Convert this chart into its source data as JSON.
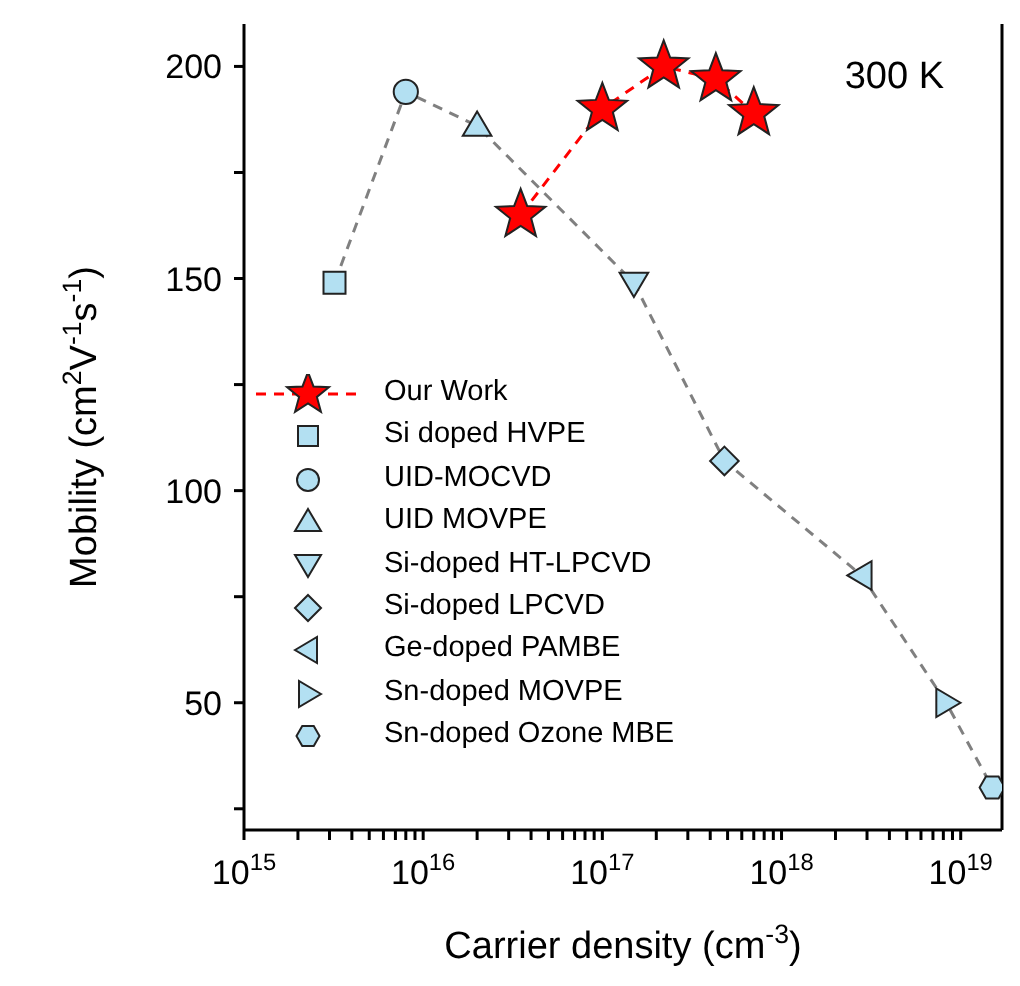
{
  "chart_data": {
    "type": "scatter",
    "xlabel": "Carrier density (cm$^{-3}$)",
    "ylabel": "Mobility (cm$^{2}$V$^{-1}$s$^{-1}$)",
    "annotations": [
      "300 K"
    ],
    "log": "x",
    "grid": false,
    "legend": "left",
    "xlim": [
      1000000000000000.0,
      1.7e+19
    ],
    "ylim": [
      20,
      210
    ],
    "xticks": [
      {
        "value": 1000000000000000.0,
        "label": "10$^{15}$"
      },
      {
        "value": 2000000000000000.0,
        "label": null
      },
      {
        "value": 3000000000000000.0,
        "label": null
      },
      {
        "value": 4000000000000000.0,
        "label": null
      },
      {
        "value": 5000000000000000.0,
        "label": null
      },
      {
        "value": 6000000000000000.0,
        "label": null
      },
      {
        "value": 7000000000000000.0,
        "label": null
      },
      {
        "value": 8000000000000000.0,
        "label": null
      },
      {
        "value": 9000000000000000.0,
        "label": null
      },
      {
        "value": 1e+16,
        "label": "10$^{16}$"
      },
      {
        "value": 2e+16,
        "label": null
      },
      {
        "value": 3e+16,
        "label": null
      },
      {
        "value": 4e+16,
        "label": null
      },
      {
        "value": 5e+16,
        "label": null
      },
      {
        "value": 6e+16,
        "label": null
      },
      {
        "value": 7e+16,
        "label": null
      },
      {
        "value": 8e+16,
        "label": null
      },
      {
        "value": 9e+16,
        "label": null
      },
      {
        "value": 1e+17,
        "label": "10$^{17}$"
      },
      {
        "value": 2e+17,
        "label": null
      },
      {
        "value": 3e+17,
        "label": null
      },
      {
        "value": 4e+17,
        "label": null
      },
      {
        "value": 5e+17,
        "label": null
      },
      {
        "value": 6e+17,
        "label": null
      },
      {
        "value": 7e+17,
        "label": null
      },
      {
        "value": 8e+17,
        "label": null
      },
      {
        "value": 9e+17,
        "label": null
      },
      {
        "value": 1e+18,
        "label": "10$^{18}$"
      },
      {
        "value": 2e+18,
        "label": null
      },
      {
        "value": 3e+18,
        "label": null
      },
      {
        "value": 4e+18,
        "label": null
      },
      {
        "value": 5e+18,
        "label": null
      },
      {
        "value": 6e+18,
        "label": null
      },
      {
        "value": 7e+18,
        "label": null
      },
      {
        "value": 8e+18,
        "label": null
      },
      {
        "value": 9e+18,
        "label": null
      },
      {
        "value": 1e+19,
        "label": "10$^{19}$"
      }
    ],
    "yticks": [
      {
        "value": 25,
        "label": null
      },
      50,
      {
        "value": 75,
        "label": null
      },
      100,
      {
        "value": 125,
        "label": null
      },
      150,
      {
        "value": 175,
        "label": null
      },
      200
    ],
    "series": [
      {
        "type": "line",
        "color": "#808080",
        "line_style": "dashed",
        "marker": "none",
        "x": [
          3200000000000000.0,
          8000000000000000.0,
          2e+16,
          1.5e+17,
          4.8e+17,
          2.8e+18,
          8.3e+18,
          1.5e+19
        ],
        "values": [
          149,
          194,
          186,
          149,
          107,
          80,
          50,
          30
        ]
      },
      {
        "name": "Our Work",
        "type": "line",
        "color": "#ff0000",
        "line_style": "dashed",
        "marker": "star",
        "x": [
          3.5e+16,
          1e+17,
          2.2e+17,
          4.3e+17,
          7e+17
        ],
        "values": [
          165,
          190,
          200,
          197,
          189
        ]
      },
      {
        "name": "Si doped HVPE",
        "color": "#b3e0f2",
        "marker": "square",
        "x": [
          3200000000000000.0
        ],
        "values": [
          149
        ]
      },
      {
        "name": "UID-MOCVD",
        "color": "#b3e0f2",
        "marker": "circle",
        "x": [
          8000000000000000.0
        ],
        "values": [
          194
        ]
      },
      {
        "name": "UID MOVPE",
        "color": "#b3e0f2",
        "marker": "triangle",
        "x": [
          2e+16
        ],
        "values": [
          186
        ]
      },
      {
        "name": "Si-doped HT-LPCVD",
        "color": "#b3e0f2",
        "marker": "triangle-down",
        "x": [
          1.5e+17
        ],
        "values": [
          149
        ]
      },
      {
        "name": "Si-doped LPCVD",
        "color": "#b3e0f2",
        "marker": "diamond",
        "x": [
          4.8e+17
        ],
        "values": [
          107
        ]
      },
      {
        "name": "Ge-doped PAMBE",
        "color": "#b3e0f2",
        "marker": "triangle-left",
        "x": [
          2.8e+18
        ],
        "values": [
          80
        ]
      },
      {
        "name": "Sn-doped MOVPE",
        "color": "#b3e0f2",
        "marker": "triangle-right",
        "x": [
          8.3e+18
        ],
        "values": [
          50
        ]
      },
      {
        "name": "Sn-doped Ozone MBE",
        "color": "#b3e0f2",
        "x": [
          1.5e+19
        ],
        "values": [
          30
        ]
      }
    ]
  }
}
